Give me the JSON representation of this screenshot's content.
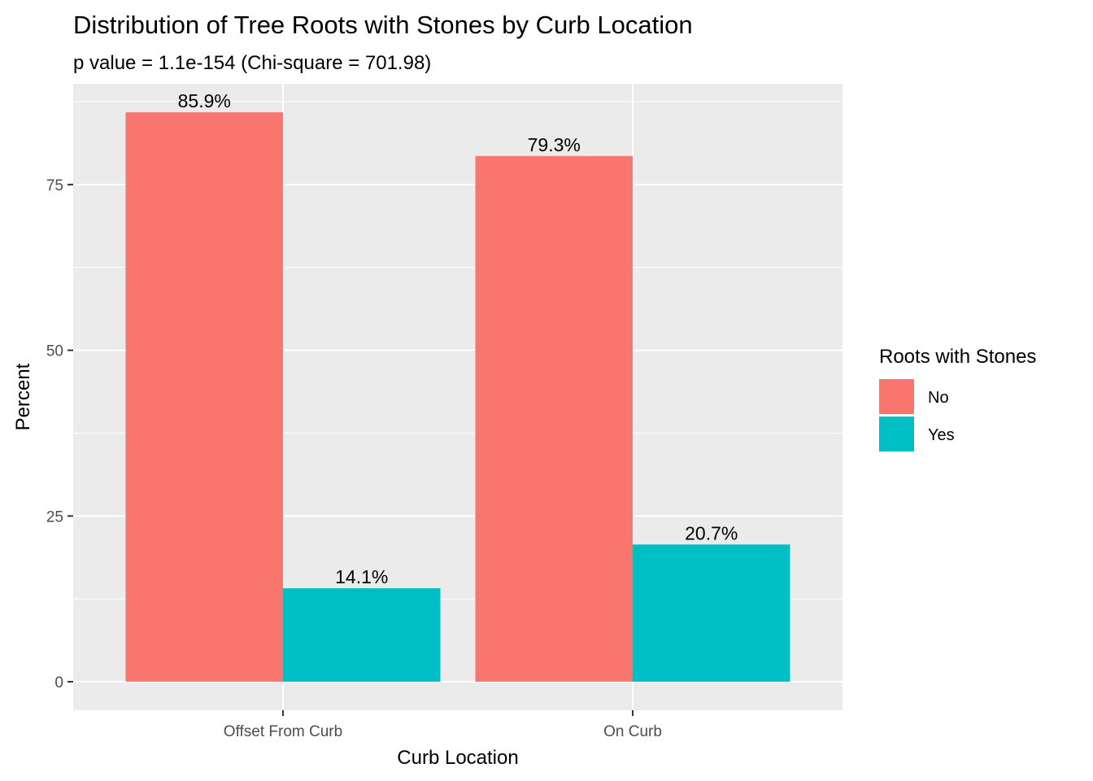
{
  "chart_data": {
    "type": "bar",
    "title": "Distribution of Tree Roots with Stones by Curb Location",
    "subtitle": "p value = 1.1e-154 (Chi-square = 701.98)",
    "xlabel": "Curb Location",
    "ylabel": "Percent",
    "categories": [
      "Offset From Curb",
      "On Curb"
    ],
    "series": [
      {
        "name": "No",
        "values": [
          85.9,
          79.3
        ],
        "labels": [
          "85.9%",
          "79.3%"
        ],
        "color": "#F8766D"
      },
      {
        "name": "Yes",
        "values": [
          14.1,
          20.7
        ],
        "labels": [
          "14.1%",
          "20.7%"
        ],
        "color": "#00BFC4"
      }
    ],
    "ylim": [
      -4.3,
      90.2
    ],
    "yticks": [
      0,
      25,
      50,
      75
    ],
    "ytick_labels": [
      "0",
      "25",
      "50",
      "75"
    ],
    "grid": true,
    "panel_background": "#EBEBEB",
    "legend": {
      "title": "Roots with Stones",
      "position": "right"
    }
  }
}
